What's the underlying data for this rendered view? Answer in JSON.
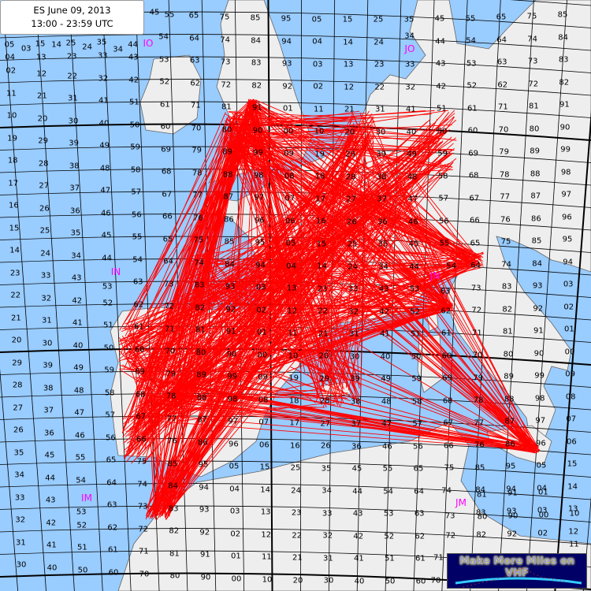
{
  "title": {
    "line1": "ES June 09, 2013",
    "line2": "13:00 - 23:59 UTC"
  },
  "colors": {
    "sea": "#99ccff",
    "land": "#eeeeee",
    "path": "#ff0000",
    "field_label": "#ff00ff",
    "grid": "#000000"
  },
  "field_labels": [
    {
      "text": "IO"
    },
    {
      "text": "JO"
    },
    {
      "text": "IN"
    },
    {
      "text": "JN"
    },
    {
      "text": "IM"
    },
    {
      "text": "JM"
    }
  ],
  "grid_rows": [
    "05 15 25 35 45 55 65 75 85 95 05 15 25 35 45 55 65 75 85",
    "04 14 24 34 44 54 64 74 84 94 04 14 24 34 44 54 64 74 84",
    "03 13 23 33 43 53 63 73 83 93 03 13 23 33 43 53 63 73 83",
    "02 12 22 32 42 52 62 72 82 92 02 12 22 32 42 52 62 72 82",
    "11 21 31 41 51 61 71 81 91 01 11 21 31 41 51 61 71 81 91",
    "10 20 30 40 50 60 70 80 90 00 10 20 30 40 50 60 70 80 90",
    "19 29 39 49 59 69 79 89 99 09 19 29 39 49 59 69 79 89 99",
    "18 28 38 48 58 68 78 88 98 08 18 28 38 48 58 68 78 88 98",
    "17 27 37 47 57 67 77 87 97 07 17 27 37 47 57 67 77 87 97",
    "16 26 36 46 56 66 76 86 96 06 16 26 36 46 56 66 76 86 96",
    "15 25 35 45 55 65 75 85 95 05 15 25 35 45 55 65 75 85 95",
    "14 24 34 44 54 64 74 84 94 04 14 24 34 44 54 64 74 84 94",
    "23 33 43 53 63 73 83 93 03 13 23 33 43 53 63 73 83 93 03",
    "22 32 42 52 62 72 82 92 02 12 22 32 42 52 62 72 82 92 02",
    "21 31 41 51 61 71 81 91 01 11 21 31 41 51 61 71 81 91 01",
    "20 30 40 50 60 70 80 90 00 10 20 30 40 50 60 70 80 90 00",
    "29 39 49 59 69 79 89 99 09 19 29 39 49 59 69 79 89 99 09",
    "28 38 48 58 68 78 88 98 08 18 28 38 48 58 68 78 88 98 08",
    "27 37 47 57 67 77 87 97 07 17 27 37 47 57 67 77 87 97 07",
    "26 36 46 56 66 76 86 96 06 16 26 36 46 56 66 76 86 96 06",
    "35 45 55 65 75 85 95 05 15 25 35 45 55 65 75 85 95 05 15",
    "34 44 54 64 74 84 94 04 14 24 34 44 54 64 74 84 94 04 14",
    "33 43 53 63 73 83 93 03 13 23 33 43 53 63 73 83 93 03 13",
    "32 42 52 62 72 82 92 02 12 22 32 42 52 62 72 82 92 02 12",
    "31 41 51 61 71 81 91 01 11 21 31 41 51 61 71 81 91 01 11",
    "30 40 50 60 70 80 90 00 10 20 30 40 50 60 70 80 90 00 10"
  ],
  "logo": {
    "text": "Make More Miles on VHF"
  }
}
